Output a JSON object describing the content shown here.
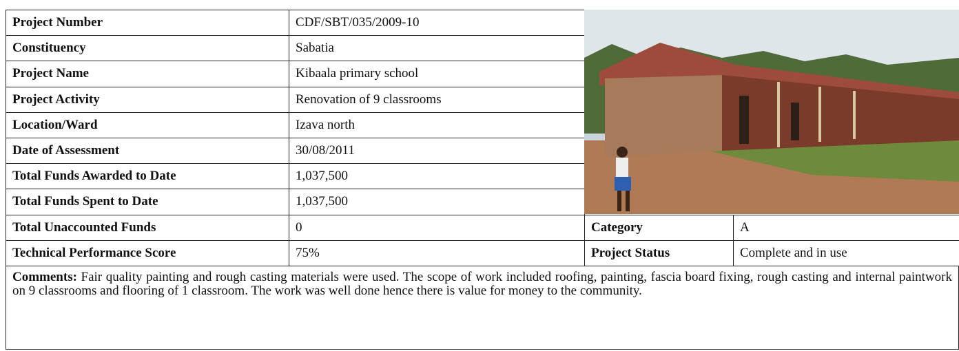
{
  "table": {
    "rows": [
      [
        "Project Number",
        "CDF/SBT/035/2009-10"
      ],
      [
        "Constituency",
        "Sabatia"
      ],
      [
        "Project Name",
        "Kibaala primary school"
      ],
      [
        "Project Activity",
        "Renovation of 9 classrooms"
      ],
      [
        "Location/Ward",
        "Izava north"
      ],
      [
        "Date of Assessment",
        "30/08/2011"
      ],
      [
        "Total Funds Awarded to Date",
        "1,037,500"
      ],
      [
        "Total Funds Spent to Date",
        "1,037,500"
      ],
      [
        "Total Unaccounted Funds",
        "0"
      ],
      [
        "Technical Performance Score",
        "75%"
      ]
    ],
    "side": [
      [
        "Category",
        "A"
      ],
      [
        "Project Status",
        "Complete and in use"
      ]
    ]
  },
  "comments": {
    "label": "Comments:",
    "text": "Fair quality painting and rough casting materials were used. The scope of work included roofing, painting, fascia board fixing, rough casting and internal paintwork on 9 classrooms and flooring of 1 classroom. The work was well done hence there is value for money to the community."
  }
}
